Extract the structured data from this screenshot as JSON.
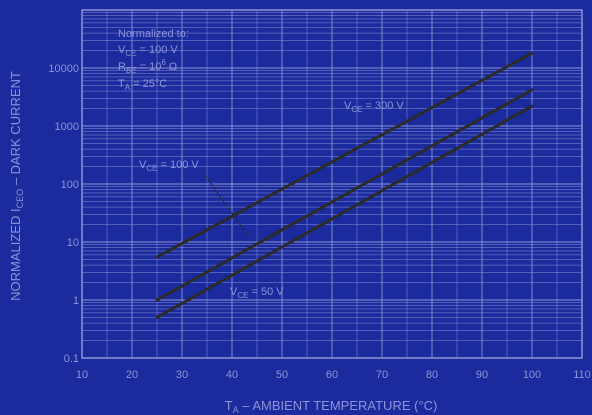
{
  "chart_data": {
    "type": "line",
    "xlabel": {
      "main": "T",
      "sub": "A",
      "rest": " – AMBIENT TEMPERATURE (°C)"
    },
    "ylabel": {
      "main": "NORMALIZED I",
      "sub": "CEO",
      "rest": " – DARK CURRENT"
    },
    "x_ticks": [
      "10",
      "20",
      "30",
      "40",
      "50",
      "60",
      "70",
      "80",
      "90",
      "100",
      "110"
    ],
    "y_ticks": [
      "0.1",
      "1",
      "10",
      "100",
      "1000",
      "10000"
    ],
    "xlim": [
      10,
      110
    ],
    "ylim": [
      0.1,
      100000
    ],
    "y_scale": "log",
    "grid": true,
    "note": {
      "line1": "Normalized to:",
      "line2": {
        "pre": "V",
        "sub": "CE",
        "post": " = 100 V"
      },
      "line3": {
        "pre": "R",
        "sub": "BE",
        "post": " = 10",
        "sup": "6",
        "tail": " Ω"
      },
      "line4": {
        "pre": "T",
        "sub": "A",
        "post": " = 25°C"
      }
    },
    "series": [
      {
        "name": {
          "pre": "V",
          "sub": "CE",
          "post": " = 300 V"
        },
        "x": [
          25,
          100
        ],
        "y": [
          5.5,
          18000
        ],
        "color": "#2b2b2b"
      },
      {
        "name": {
          "pre": "V",
          "sub": "CE",
          "post": " = 100 V"
        },
        "x": [
          25,
          100
        ],
        "y": [
          1.0,
          4200
        ],
        "color": "#2b2b2b"
      },
      {
        "name": {
          "pre": "V",
          "sub": "CE",
          "post": " = 50 V"
        },
        "x": [
          25,
          100
        ],
        "y": [
          0.5,
          2200
        ],
        "color": "#2b2b2b"
      }
    ],
    "colors": {
      "background": "#1b2a9c",
      "grid": "#8c94d8",
      "text": "#8c94d8",
      "curve": "#2b2b2b"
    }
  }
}
